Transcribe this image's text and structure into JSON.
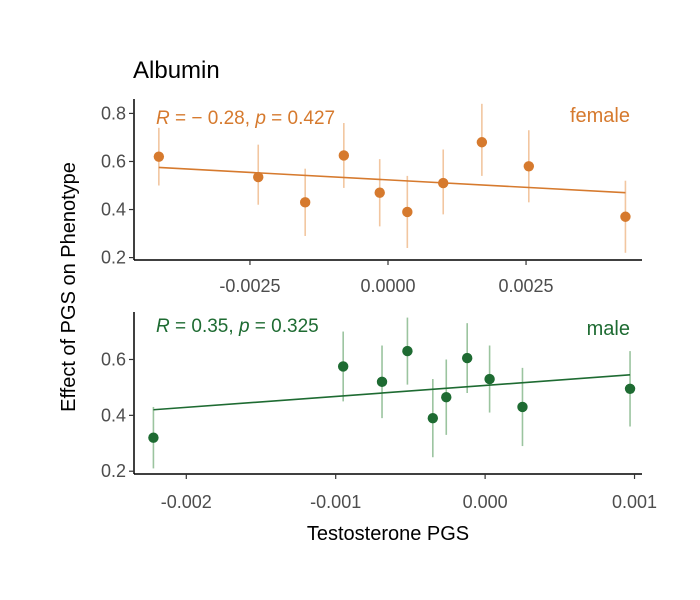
{
  "title": "Albumin",
  "xlabel": "Testosterone PGS",
  "ylabel": "Effect of PGS on Phenotype",
  "chart_data": [
    {
      "type": "scatter",
      "panel": "female",
      "label": "female",
      "stat": {
        "r_prefix": "R",
        "r_text": " = − 0.28, ",
        "p_prefix": "p",
        "p_text": " = 0.427"
      },
      "color": "#D67A2E",
      "err_color": "#F2C6A0",
      "xlim": [
        -0.0046,
        0.0046
      ],
      "ylim": [
        0.19,
        0.86
      ],
      "xticks": [
        -0.0025,
        0.0,
        0.0025
      ],
      "xtick_labels": [
        "-0.0025",
        "0.0000",
        "0.0025"
      ],
      "yticks": [
        0.2,
        0.4,
        0.6,
        0.8
      ],
      "ytick_labels": [
        "0.2",
        "0.4",
        "0.6",
        "0.8"
      ],
      "points": [
        {
          "x": -0.00415,
          "y": 0.62,
          "lo": 0.5,
          "hi": 0.74
        },
        {
          "x": -0.00235,
          "y": 0.535,
          "lo": 0.42,
          "hi": 0.67
        },
        {
          "x": -0.0015,
          "y": 0.43,
          "lo": 0.29,
          "hi": 0.57
        },
        {
          "x": -0.0008,
          "y": 0.625,
          "lo": 0.49,
          "hi": 0.76
        },
        {
          "x": -0.00015,
          "y": 0.47,
          "lo": 0.33,
          "hi": 0.61
        },
        {
          "x": 0.00035,
          "y": 0.39,
          "lo": 0.24,
          "hi": 0.54
        },
        {
          "x": 0.001,
          "y": 0.51,
          "lo": 0.38,
          "hi": 0.65
        },
        {
          "x": 0.0017,
          "y": 0.68,
          "lo": 0.54,
          "hi": 0.84
        },
        {
          "x": 0.00255,
          "y": 0.58,
          "lo": 0.43,
          "hi": 0.73
        },
        {
          "x": 0.0043,
          "y": 0.37,
          "lo": 0.22,
          "hi": 0.52
        }
      ],
      "fit": {
        "x": [
          -0.00415,
          0.0043
        ],
        "y": [
          0.575,
          0.47
        ]
      }
    },
    {
      "type": "scatter",
      "panel": "male",
      "label": "male",
      "stat": {
        "r_prefix": "R",
        "r_text": " = 0.35, ",
        "p_prefix": "p",
        "p_text": " = 0.325"
      },
      "color": "#1E6B32",
      "err_color": "#9BC49F",
      "xlim": [
        -0.00235,
        0.00105
      ],
      "ylim": [
        0.19,
        0.77
      ],
      "xticks": [
        -0.002,
        -0.001,
        0.0,
        0.001
      ],
      "xtick_labels": [
        "-0.002",
        "-0.001",
        "0.000",
        "0.001"
      ],
      "yticks": [
        0.2,
        0.4,
        0.6
      ],
      "ytick_labels": [
        "0.2",
        "0.4",
        "0.6"
      ],
      "points": [
        {
          "x": -0.00222,
          "y": 0.32,
          "lo": 0.21,
          "hi": 0.43
        },
        {
          "x": -0.00095,
          "y": 0.575,
          "lo": 0.45,
          "hi": 0.7
        },
        {
          "x": -0.00069,
          "y": 0.52,
          "lo": 0.39,
          "hi": 0.65
        },
        {
          "x": -0.00052,
          "y": 0.63,
          "lo": 0.51,
          "hi": 0.75
        },
        {
          "x": -0.00035,
          "y": 0.39,
          "lo": 0.25,
          "hi": 0.53
        },
        {
          "x": -0.00026,
          "y": 0.465,
          "lo": 0.33,
          "hi": 0.6
        },
        {
          "x": -0.00012,
          "y": 0.605,
          "lo": 0.48,
          "hi": 0.73
        },
        {
          "x": 3e-05,
          "y": 0.53,
          "lo": 0.41,
          "hi": 0.65
        },
        {
          "x": 0.00025,
          "y": 0.43,
          "lo": 0.29,
          "hi": 0.57
        },
        {
          "x": 0.00097,
          "y": 0.495,
          "lo": 0.36,
          "hi": 0.63
        }
      ],
      "fit": {
        "x": [
          -0.00222,
          0.00097
        ],
        "y": [
          0.42,
          0.545
        ]
      }
    }
  ]
}
